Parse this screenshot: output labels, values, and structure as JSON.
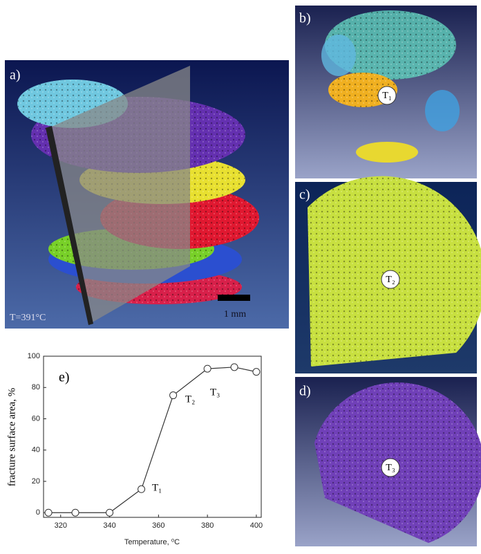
{
  "panels": {
    "a": {
      "label": "a)",
      "temperature": "T=391°C",
      "scale": "1 mm"
    },
    "b": {
      "label": "b)",
      "marker": "T₁"
    },
    "c": {
      "label": "c)",
      "marker": "T₂"
    },
    "d": {
      "label": "d)",
      "marker": "T₃"
    }
  },
  "chart_data": {
    "type": "line",
    "panel_label": "e)",
    "x_label": "Temperature, ⁰C",
    "y_label": "fracture surface area, %",
    "x": [
      315,
      326,
      340,
      353,
      366,
      380,
      391,
      400
    ],
    "values": [
      0,
      0,
      0,
      15,
      75,
      92,
      93,
      90
    ],
    "color": "#333333",
    "xlim": [
      313,
      402
    ],
    "xticks": [
      320,
      340,
      360,
      380,
      400
    ],
    "ylim": [
      -3,
      100
    ],
    "yticks": [
      0,
      20,
      40,
      60,
      80,
      100
    ],
    "annotations": [
      "T₁",
      "T₂",
      "T₃"
    ]
  }
}
